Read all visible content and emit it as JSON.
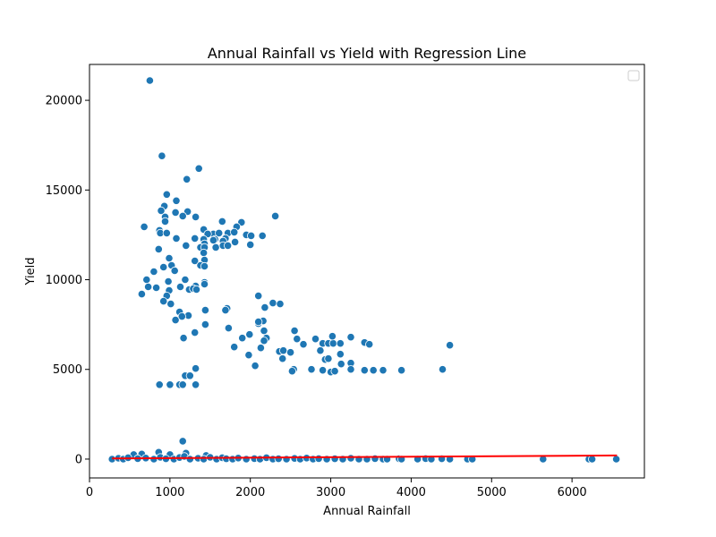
{
  "chart_data": {
    "type": "scatter",
    "title": "Annual Rainfall vs Yield with Regression Line",
    "xlabel": "Annual Rainfall",
    "ylabel": "Yield",
    "xlim": [
      0,
      6900
    ],
    "ylim": [
      -1050,
      22000
    ],
    "x_ticks": [
      0,
      1000,
      2000,
      3000,
      4000,
      5000,
      6000
    ],
    "y_ticks": [
      0,
      5000,
      10000,
      15000,
      20000
    ],
    "grid": false,
    "legend": {
      "position": "top-right",
      "entries": []
    },
    "colors": {
      "points": "#1f77b4",
      "regression": "#ff0000",
      "point_edge": "#ffffff"
    },
    "regression_line": {
      "x": [
        280,
        6560
      ],
      "y": [
        40,
        200
      ]
    },
    "series": [
      {
        "values": [
          [
            750,
            21100
          ],
          [
            900,
            16900
          ],
          [
            1360,
            16200
          ],
          [
            1210,
            15600
          ],
          [
            960,
            14750
          ],
          [
            1080,
            14400
          ],
          [
            930,
            14100
          ],
          [
            890,
            13850
          ],
          [
            1220,
            13800
          ],
          [
            940,
            13500
          ],
          [
            1070,
            13750
          ],
          [
            1160,
            13550
          ],
          [
            1320,
            13500
          ],
          [
            1650,
            13250
          ],
          [
            1890,
            13200
          ],
          [
            2310,
            13550
          ],
          [
            680,
            12950
          ],
          [
            940,
            13250
          ],
          [
            1830,
            12950
          ],
          [
            1420,
            12800
          ],
          [
            870,
            12750
          ],
          [
            1540,
            12550
          ],
          [
            1610,
            12600
          ],
          [
            1720,
            12600
          ],
          [
            1800,
            12650
          ],
          [
            880,
            12600
          ],
          [
            960,
            12600
          ],
          [
            1470,
            12550
          ],
          [
            1950,
            12500
          ],
          [
            2010,
            12450
          ],
          [
            2150,
            12450
          ],
          [
            1080,
            12300
          ],
          [
            1310,
            12300
          ],
          [
            1420,
            12250
          ],
          [
            1560,
            12250
          ],
          [
            1690,
            12300
          ],
          [
            1430,
            12000
          ],
          [
            1540,
            12200
          ],
          [
            1660,
            12150
          ],
          [
            1810,
            12100
          ],
          [
            1200,
            11900
          ],
          [
            1380,
            11800
          ],
          [
            1430,
            11800
          ],
          [
            1570,
            11800
          ],
          [
            1660,
            11900
          ],
          [
            1720,
            11900
          ],
          [
            2000,
            11950
          ],
          [
            860,
            11700
          ],
          [
            1420,
            11500
          ],
          [
            990,
            11200
          ],
          [
            1310,
            11050
          ],
          [
            1430,
            11100
          ],
          [
            1020,
            10800
          ],
          [
            1380,
            10800
          ],
          [
            1430,
            10750
          ],
          [
            920,
            10700
          ],
          [
            800,
            10450
          ],
          [
            1060,
            10500
          ],
          [
            980,
            9900
          ],
          [
            710,
            10000
          ],
          [
            1190,
            10000
          ],
          [
            1430,
            9850
          ],
          [
            1320,
            9650
          ],
          [
            1430,
            9750
          ],
          [
            730,
            9600
          ],
          [
            830,
            9550
          ],
          [
            1130,
            9600
          ],
          [
            1240,
            9450
          ],
          [
            1290,
            9500
          ],
          [
            1330,
            9450
          ],
          [
            990,
            9400
          ],
          [
            650,
            9200
          ],
          [
            960,
            9100
          ],
          [
            920,
            8800
          ],
          [
            2100,
            9100
          ],
          [
            1010,
            8650
          ],
          [
            2280,
            8700
          ],
          [
            2370,
            8650
          ],
          [
            2180,
            8450
          ],
          [
            1710,
            8400
          ],
          [
            1440,
            8300
          ],
          [
            1690,
            8300
          ],
          [
            1120,
            8200
          ],
          [
            1230,
            8000
          ],
          [
            1150,
            7950
          ],
          [
            1070,
            7750
          ],
          [
            1440,
            7500
          ],
          [
            2100,
            7550
          ],
          [
            2160,
            7700
          ],
          [
            2100,
            7650
          ],
          [
            1730,
            7300
          ],
          [
            2170,
            7150
          ],
          [
            1310,
            7050
          ],
          [
            2550,
            7150
          ],
          [
            1990,
            6950
          ],
          [
            1170,
            6750
          ],
          [
            1900,
            6750
          ],
          [
            2200,
            6750
          ],
          [
            2580,
            6700
          ],
          [
            2810,
            6700
          ],
          [
            2170,
            6600
          ],
          [
            2660,
            6400
          ],
          [
            2900,
            6450
          ],
          [
            2970,
            6450
          ],
          [
            3030,
            6450
          ],
          [
            3020,
            6850
          ],
          [
            3250,
            6800
          ],
          [
            3120,
            6450
          ],
          [
            3420,
            6500
          ],
          [
            3480,
            6400
          ],
          [
            4480,
            6350
          ],
          [
            1800,
            6250
          ],
          [
            2130,
            6200
          ],
          [
            2360,
            6000
          ],
          [
            2410,
            6050
          ],
          [
            2500,
            5950
          ],
          [
            2870,
            6050
          ],
          [
            3120,
            5850
          ],
          [
            1980,
            5800
          ],
          [
            2930,
            5550
          ],
          [
            2970,
            5600
          ],
          [
            2400,
            5600
          ],
          [
            3130,
            5300
          ],
          [
            3250,
            5350
          ],
          [
            2060,
            5200
          ],
          [
            2540,
            5000
          ],
          [
            2760,
            5000
          ],
          [
            2900,
            4950
          ],
          [
            3000,
            4850
          ],
          [
            3050,
            4900
          ],
          [
            3250,
            5000
          ],
          [
            3420,
            4950
          ],
          [
            3530,
            4950
          ],
          [
            3650,
            4950
          ],
          [
            3880,
            4950
          ],
          [
            4390,
            5000
          ],
          [
            1320,
            5050
          ],
          [
            2520,
            4900
          ],
          [
            1190,
            4650
          ],
          [
            1250,
            4650
          ],
          [
            870,
            4150
          ],
          [
            1000,
            4150
          ],
          [
            1120,
            4150
          ],
          [
            1160,
            4150
          ],
          [
            1320,
            4150
          ],
          [
            1160,
            1000
          ],
          [
            860,
            380
          ],
          [
            1200,
            330
          ],
          [
            550,
            250
          ],
          [
            650,
            280
          ],
          [
            1000,
            250
          ],
          [
            1450,
            200
          ],
          [
            280,
            0
          ],
          [
            360,
            50
          ],
          [
            420,
            0
          ],
          [
            480,
            80
          ],
          [
            600,
            30
          ],
          [
            700,
            60
          ],
          [
            800,
            0
          ],
          [
            880,
            100
          ],
          [
            950,
            20
          ],
          [
            1050,
            0
          ],
          [
            1120,
            90
          ],
          [
            1180,
            150
          ],
          [
            1250,
            0
          ],
          [
            1350,
            50
          ],
          [
            1420,
            0
          ],
          [
            1500,
            100
          ],
          [
            1580,
            0
          ],
          [
            1650,
            80
          ],
          [
            1700,
            20
          ],
          [
            1780,
            0
          ],
          [
            1850,
            60
          ],
          [
            1950,
            0
          ],
          [
            2050,
            30
          ],
          [
            2120,
            0
          ],
          [
            2200,
            80
          ],
          [
            2280,
            0
          ],
          [
            2350,
            20
          ],
          [
            2450,
            0
          ],
          [
            2550,
            40
          ],
          [
            2620,
            0
          ],
          [
            2700,
            60
          ],
          [
            2780,
            0
          ],
          [
            2850,
            30
          ],
          [
            2950,
            0
          ],
          [
            3050,
            20
          ],
          [
            3150,
            0
          ],
          [
            3250,
            50
          ],
          [
            3350,
            0
          ],
          [
            3450,
            0
          ],
          [
            3550,
            30
          ],
          [
            3650,
            0
          ],
          [
            3700,
            0
          ],
          [
            3850,
            20
          ],
          [
            3880,
            0
          ],
          [
            4080,
            0
          ],
          [
            4180,
            30
          ],
          [
            4250,
            0
          ],
          [
            4380,
            20
          ],
          [
            4480,
            0
          ],
          [
            4700,
            0
          ],
          [
            4760,
            0
          ],
          [
            5640,
            0
          ],
          [
            6210,
            0
          ],
          [
            6250,
            0
          ],
          [
            6550,
            0
          ]
        ]
      }
    ]
  }
}
